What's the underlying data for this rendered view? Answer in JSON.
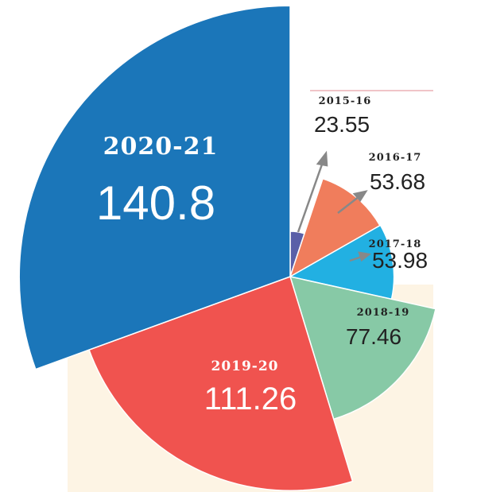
{
  "chart_data": {
    "type": "pie",
    "categories": [
      "2015-16",
      "2016-17",
      "2017-18",
      "2018-19",
      "2019-20",
      "2020-21"
    ],
    "values": [
      23.55,
      53.68,
      53.98,
      77.46,
      111.26,
      140.8
    ],
    "colors": [
      "#5a5fa8",
      "#f07d5c",
      "#22b0e2",
      "#87c9a6",
      "#f0534f",
      "#1b76b9"
    ]
  }
}
